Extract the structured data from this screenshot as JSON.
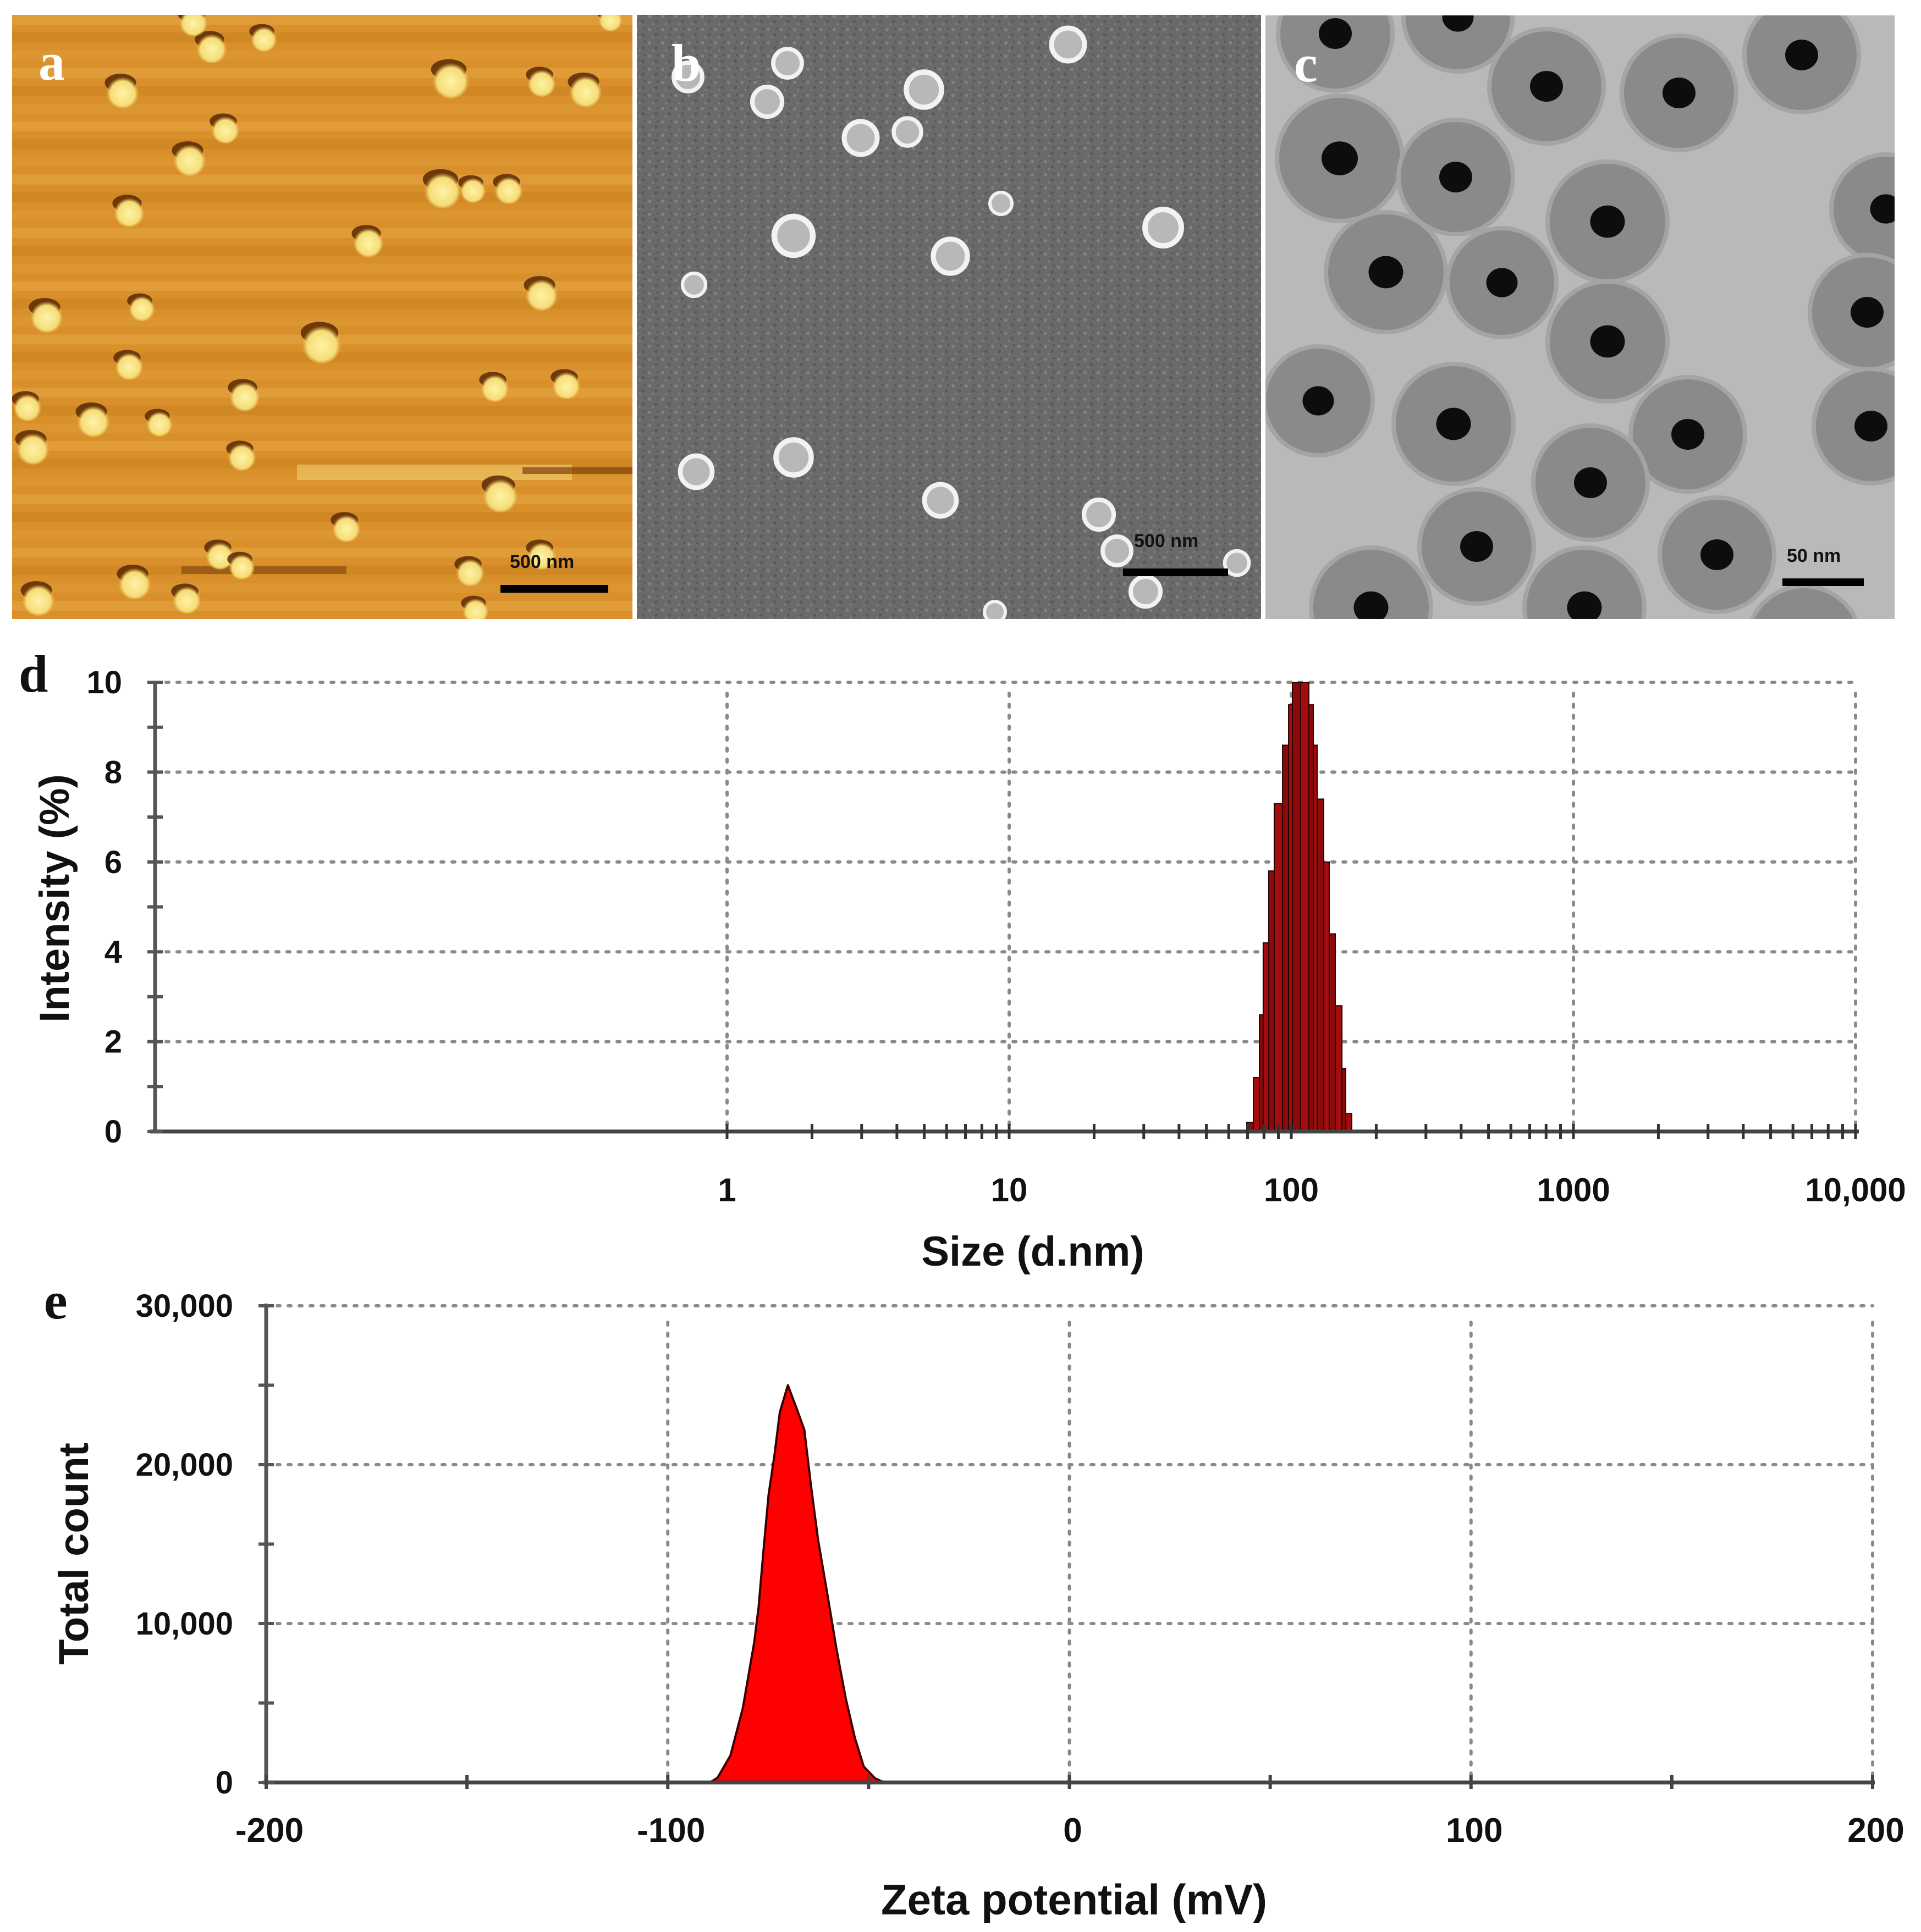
{
  "figure": {
    "panels": {
      "a": {
        "label": "a",
        "kind": "AFM image",
        "scale_bar_label": "500 nm",
        "colors": {
          "background": "#d9902a",
          "particle": "#fff3a6",
          "shadow": "#5a2a05"
        },
        "particles": [
          [
            223,
            167,
            30
          ],
          [
            385,
            87,
            28
          ],
          [
            820,
            145,
            34
          ],
          [
            352,
            40,
            26
          ],
          [
            480,
            70,
            24
          ],
          [
            1065,
            165,
            30
          ],
          [
            985,
            150,
            26
          ],
          [
            410,
            235,
            26
          ],
          [
            345,
            290,
            30
          ],
          [
            235,
            385,
            28
          ],
          [
            805,
            345,
            34
          ],
          [
            860,
            345,
            24
          ],
          [
            925,
            345,
            26
          ],
          [
            670,
            440,
            28
          ],
          [
            985,
            535,
            30
          ],
          [
            85,
            575,
            30
          ],
          [
            258,
            560,
            24
          ],
          [
            585,
            625,
            36
          ],
          [
            235,
            665,
            26
          ],
          [
            445,
            720,
            28
          ],
          [
            900,
            705,
            26
          ],
          [
            1030,
            700,
            26
          ],
          [
            50,
            740,
            26
          ],
          [
            170,
            765,
            30
          ],
          [
            290,
            770,
            24
          ],
          [
            60,
            815,
            30
          ],
          [
            440,
            830,
            26
          ],
          [
            400,
            1010,
            26
          ],
          [
            245,
            1060,
            30
          ],
          [
            855,
            1040,
            26
          ],
          [
            985,
            1010,
            26
          ],
          [
            910,
            900,
            32
          ],
          [
            630,
            960,
            26
          ],
          [
            70,
            1090,
            30
          ],
          [
            340,
            1090,
            26
          ],
          [
            865,
            1110,
            24
          ],
          [
            440,
            1030,
            24
          ],
          [
            620,
            1165,
            24
          ],
          [
            1110,
            35,
            22
          ]
        ]
      },
      "b": {
        "label": "b",
        "kind": "SEM image",
        "scale_bar_label": "500 nm",
        "colors": {
          "background": "#6e6e6e",
          "ring": "#f2f2f2",
          "center": "#b8b8b8"
        },
        "particles": [
          [
            1942,
            81,
            30
          ],
          [
            1432,
            115,
            26
          ],
          [
            1680,
            163,
            32
          ],
          [
            1395,
            185,
            27
          ],
          [
            1565,
            251,
            30
          ],
          [
            1650,
            240,
            25
          ],
          [
            1820,
            370,
            20
          ],
          [
            1443,
            429,
            35
          ],
          [
            2115,
            414,
            33
          ],
          [
            1728,
            466,
            31
          ],
          [
            1262,
            518,
            21
          ],
          [
            1266,
            858,
            29
          ],
          [
            1443,
            832,
            32
          ],
          [
            1710,
            910,
            29
          ],
          [
            1998,
            936,
            27
          ],
          [
            2031,
            1002,
            26
          ],
          [
            2249,
            1024,
            22
          ],
          [
            2083,
            1076,
            27
          ],
          [
            1809,
            1113,
            19
          ],
          [
            1251,
            140,
            26
          ]
        ]
      },
      "c": {
        "label": "c",
        "kind": "TEM image",
        "scale_bar_label": "50 nm",
        "colors": {
          "background": "#b9b9b9",
          "shell": "#8a8a8a",
          "core": "#0d0d0d"
        },
        "particles": [
          [
            2428,
            61,
            100
          ],
          [
            2812,
            157,
            100
          ],
          [
            3053,
            169,
            100
          ],
          [
            3276,
            100,
            100
          ],
          [
            2436,
            288,
            110
          ],
          [
            2647,
            322,
            100
          ],
          [
            2923,
            403,
            105
          ],
          [
            2520,
            495,
            105
          ],
          [
            2731,
            514,
            95
          ],
          [
            3429,
            380,
            95
          ],
          [
            3395,
            568,
            100
          ],
          [
            2923,
            621,
            105
          ],
          [
            2397,
            729,
            95
          ],
          [
            2643,
            771,
            105
          ],
          [
            3069,
            790,
            100
          ],
          [
            3402,
            775,
            100
          ],
          [
            2892,
            878,
            100
          ],
          [
            2685,
            994,
            100
          ],
          [
            3122,
            1009,
            100
          ],
          [
            2493,
            1105,
            105
          ],
          [
            2881,
            1105,
            105
          ],
          [
            3280,
            1170,
            100
          ],
          [
            2651,
            31,
            95
          ]
        ]
      }
    }
  },
  "chart_data": [
    {
      "panel": "d",
      "type": "bar",
      "title": "",
      "xlabel": "Size (d.nm)",
      "ylabel": "Intensity (%)",
      "xscale": "log",
      "xlim": [
        0.01,
        10000
      ],
      "ylim": [
        0,
        10
      ],
      "x_tick_labels": [
        "1",
        "10",
        "100",
        "1000",
        "10,000"
      ],
      "x_tick_values": [
        1,
        10,
        100,
        1000,
        10000
      ],
      "y_tick_labels": [
        "0",
        "2",
        "4",
        "6",
        "8",
        "10"
      ],
      "y_tick_values": [
        0,
        2,
        4,
        6,
        8,
        10
      ],
      "grid": true,
      "bar_color": "#8b0a0a",
      "bars": [
        {
          "from_nm": 69.5,
          "to_nm": 73.4,
          "value": 0.2
        },
        {
          "from_nm": 73.4,
          "to_nm": 77.1,
          "value": 1.2
        },
        {
          "from_nm": 77.1,
          "to_nm": 79.5,
          "value": 2.6
        },
        {
          "from_nm": 79.5,
          "to_nm": 83.2,
          "value": 4.2
        },
        {
          "from_nm": 83.2,
          "to_nm": 87.0,
          "value": 5.8
        },
        {
          "from_nm": 87.0,
          "to_nm": 93.1,
          "value": 7.3
        },
        {
          "from_nm": 93.1,
          "to_nm": 97.8,
          "value": 8.6
        },
        {
          "from_nm": 97.8,
          "to_nm": 100.9,
          "value": 9.5
        },
        {
          "from_nm": 100.9,
          "to_nm": 107.9,
          "value": 10.0
        },
        {
          "from_nm": 107.9,
          "to_nm": 115.4,
          "value": 10.0
        },
        {
          "from_nm": 115.4,
          "to_nm": 119.7,
          "value": 9.5
        },
        {
          "from_nm": 119.7,
          "to_nm": 123.5,
          "value": 8.6
        },
        {
          "from_nm": 123.5,
          "to_nm": 130.3,
          "value": 7.4
        },
        {
          "from_nm": 130.3,
          "to_nm": 136.3,
          "value": 6.0
        },
        {
          "from_nm": 136.3,
          "to_nm": 143.2,
          "value": 4.4
        },
        {
          "from_nm": 143.2,
          "to_nm": 151.2,
          "value": 2.8
        },
        {
          "from_nm": 151.2,
          "to_nm": 155.9,
          "value": 1.4
        },
        {
          "from_nm": 155.9,
          "to_nm": 163.8,
          "value": 0.4
        }
      ],
      "peak": {
        "size_nm": 105,
        "intensity": 10
      }
    },
    {
      "panel": "e",
      "type": "area",
      "title": "",
      "xlabel": "Zeta potential (mV)",
      "ylabel": "Total count",
      "xlim": [
        -200,
        200
      ],
      "ylim": [
        0,
        30000
      ],
      "x_tick_labels": [
        "-200",
        "-100",
        "0",
        "100",
        "200"
      ],
      "x_tick_values": [
        -200,
        -100,
        0,
        100,
        200
      ],
      "y_tick_labels": [
        "0",
        "10,000",
        "20,000",
        "30,000"
      ],
      "y_tick_values": [
        0,
        10000,
        20000,
        30000
      ],
      "grid": true,
      "fill_color": "#ff0000",
      "x": [
        -89.5,
        -87.6,
        -84.4,
        -81.3,
        -78.5,
        -77.4,
        -76.2,
        -74.9,
        -73.5,
        -72.1,
        -70.1,
        -68.0,
        -66.0,
        -64.4,
        -62.6,
        -60.3,
        -58.0,
        -55.7,
        -53.4,
        -51.2,
        -48.4,
        -46.1
      ],
      "values": [
        0,
        300,
        1700,
        4700,
        8800,
        11000,
        14500,
        18100,
        20500,
        23300,
        25000,
        23600,
        22200,
        18800,
        15300,
        11900,
        8400,
        5300,
        2800,
        1000,
        260,
        0
      ],
      "peak": {
        "zeta_mV": -70,
        "count": 25000
      }
    }
  ],
  "labels": {
    "d": "d",
    "e": "e"
  }
}
